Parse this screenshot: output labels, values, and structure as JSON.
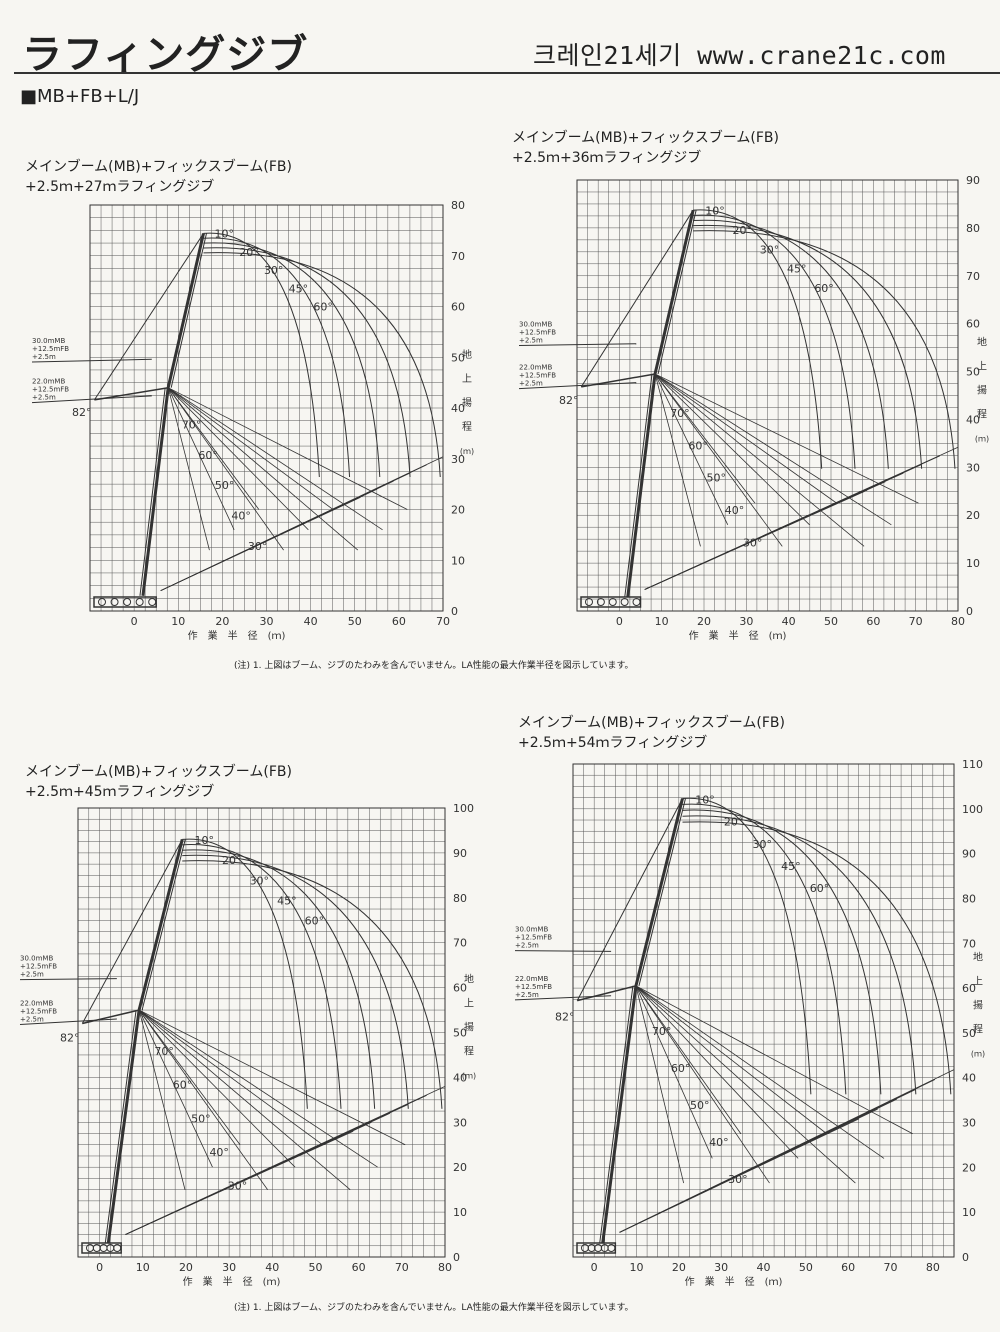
{
  "header": {
    "title": "ラフィングジブ",
    "site": "크레인21세기 www.crane21c.com",
    "subtitle": "■MB+FB+L/J"
  },
  "footnote": "(注) 1. 上図はブーム、ジブのたわみを含んでいません。LA性能の最大作業半径を図示しています。",
  "charts": [
    {
      "caption1": "メインブーム(MB)+フィックスブーム(FB)",
      "caption2": "+2.5ｍ+27ｍラフィングジブ",
      "x_label": "作　業　半　径　(ｍ)",
      "y_label_chars": [
        "地",
        "上",
        "揚",
        "程",
        "(ｍ)"
      ],
      "boom_label_30": [
        "30.0mMB",
        "+12.5mFB",
        "+2.5m"
      ],
      "boom_label_22": [
        "22.0mMB",
        "+12.5mFB",
        "+2.5m"
      ],
      "boom_angle": "82°",
      "jib_angles": [
        "10°",
        "20°",
        "30°",
        "45°",
        "60°"
      ],
      "main_angles": [
        "70°",
        "60°",
        "50°",
        "40°",
        "30°"
      ]
    },
    {
      "caption1": "メインブーム(MB)+フィックスブーム(FB)",
      "caption2": "+2.5ｍ+36ｍラフィングジブ",
      "x_label": "作　業　半　径　(ｍ)",
      "y_label_chars": [
        "地",
        "上",
        "揚",
        "程",
        "(ｍ)"
      ],
      "boom_label_30": [
        "30.0mMB",
        "+12.5mFB",
        "+2.5m"
      ],
      "boom_label_22": [
        "22.0mMB",
        "+12.5mFB",
        "+2.5m"
      ],
      "boom_angle": "82°",
      "jib_angles": [
        "10°",
        "20°",
        "30°",
        "45°",
        "60°"
      ],
      "main_angles": [
        "70°",
        "60°",
        "50°",
        "40°",
        "30°"
      ]
    },
    {
      "caption1": "メインブーム(MB)+フィックスブーム(FB)",
      "caption2": "+2.5ｍ+45ｍラフィングジブ",
      "x_label": "作　業　半　径　(ｍ)",
      "y_label_chars": [
        "地",
        "上",
        "揚",
        "程",
        "(ｍ)"
      ],
      "boom_label_30": [
        "30.0mMB",
        "+12.5mFB",
        "+2.5m"
      ],
      "boom_label_22": [
        "22.0mMB",
        "+12.5mFB",
        "+2.5m"
      ],
      "boom_angle": "82°",
      "jib_angles": [
        "10°",
        "20°",
        "30°",
        "45°",
        "60°"
      ],
      "main_angles": [
        "70°",
        "60°",
        "50°",
        "40°",
        "30°"
      ]
    },
    {
      "caption1": "メインブーム(MB)+フィックスブーム(FB)",
      "caption2": "+2.5ｍ+54ｍラフィングジブ",
      "x_label": "作　業　半　径　(ｍ)",
      "y_label_chars": [
        "地",
        "上",
        "揚",
        "程",
        "(ｍ)"
      ],
      "boom_label_30": [
        "30.0mMB",
        "+12.5mFB",
        "+2.5m"
      ],
      "boom_label_22": [
        "22.0mMB",
        "+12.5mFB",
        "+2.5m"
      ],
      "boom_angle": "82°",
      "jib_angles": [
        "10°",
        "20°",
        "30°",
        "45°",
        "60°"
      ],
      "main_angles": [
        "70°",
        "60°",
        "50°",
        "40°",
        "30°"
      ]
    }
  ],
  "chart_data": [
    {
      "type": "diagram",
      "x_range": [
        -10,
        70
      ],
      "y_range": [
        0,
        80
      ],
      "x_ticks": [
        "0",
        "10",
        "20",
        "30",
        "40",
        "50",
        "60",
        "70"
      ],
      "y_ticks": [
        "0",
        "10",
        "20",
        "30",
        "40",
        "50",
        "60",
        "70",
        "80"
      ],
      "grid": true
    },
    {
      "type": "diagram",
      "x_range": [
        -10,
        80
      ],
      "y_range": [
        0,
        90
      ],
      "x_ticks": [
        "0",
        "10",
        "20",
        "30",
        "40",
        "50",
        "60",
        "70",
        "80"
      ],
      "y_ticks": [
        "0",
        "10",
        "20",
        "30",
        "40",
        "50",
        "60",
        "70",
        "80",
        "90"
      ],
      "grid": true
    },
    {
      "type": "diagram",
      "x_range": [
        -5,
        80
      ],
      "y_range": [
        0,
        100
      ],
      "x_ticks": [
        "0",
        "10",
        "20",
        "30",
        "40",
        "50",
        "60",
        "70",
        "80"
      ],
      "y_ticks": [
        "0",
        "10",
        "20",
        "30",
        "40",
        "50",
        "60",
        "70",
        "80",
        "90",
        "100"
      ],
      "grid": true
    },
    {
      "type": "diagram",
      "x_range": [
        -5,
        85
      ],
      "y_range": [
        0,
        110
      ],
      "x_ticks": [
        "0",
        "10",
        "20",
        "30",
        "40",
        "50",
        "60",
        "70",
        "80"
      ],
      "y_ticks": [
        "0",
        "10",
        "20",
        "30",
        "40",
        "50",
        "60",
        "70",
        "80",
        "90",
        "100",
        "110"
      ],
      "grid": true
    }
  ],
  "colors": {
    "ink": "#333333",
    "grid": "#555555",
    "paper": "#f7f6f2"
  }
}
